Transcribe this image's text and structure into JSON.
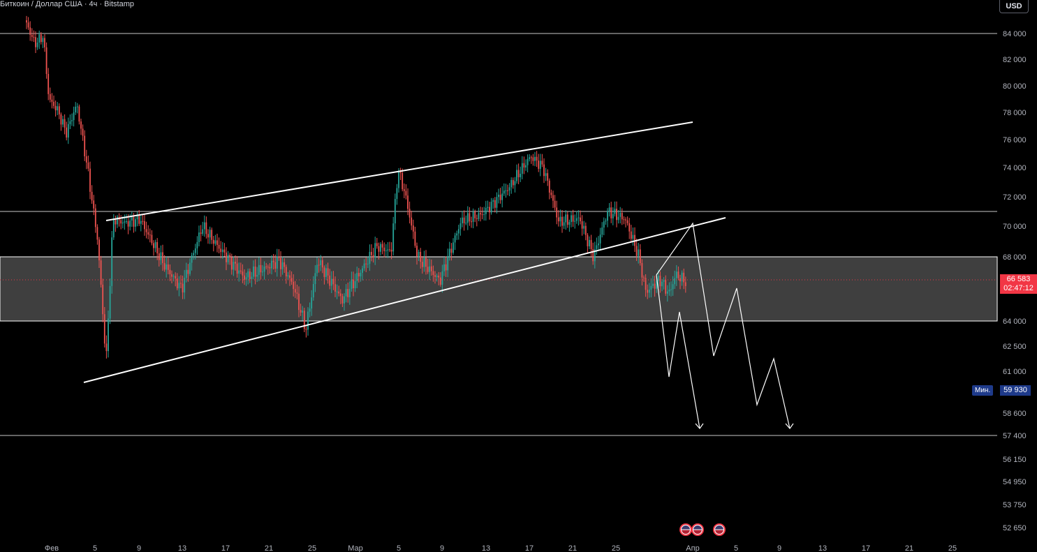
{
  "symbol": {
    "title": "Биткоин / Доллар США · 4ч · Bitstamp"
  },
  "currency": {
    "label": "USD"
  },
  "price_axis": {
    "ticks": [
      "84 000",
      "82 000",
      "80 000",
      "78 000",
      "76 000",
      "74 000",
      "72 000",
      "70 000",
      "68 000",
      "64 000",
      "62 500",
      "61 000",
      "58 600",
      "57 400",
      "56 150",
      "54 950",
      "53 750",
      "52 650"
    ]
  },
  "time_axis": {
    "ticks": [
      "Фев",
      "5",
      "9",
      "13",
      "17",
      "21",
      "25",
      "Мар",
      "5",
      "9",
      "13",
      "17",
      "21",
      "25",
      "Апр",
      "5",
      "9",
      "13",
      "17",
      "21",
      "25"
    ]
  },
  "last_price": {
    "value": "66 583",
    "countdown": "02:47:12"
  },
  "min_marker": {
    "label": "Мин.",
    "value": "59 930"
  },
  "colors": {
    "up": "#26a69a",
    "down": "#ef5350",
    "drawing": "#ffffff",
    "zone": "#4a4a4a",
    "badge": "#f23645",
    "min_badge": "#1e3a8a"
  },
  "horizontal_levels": [
    84000,
    71000,
    57400
  ],
  "support_zone": {
    "top": 68000,
    "bottom": 64000
  },
  "events": [
    {
      "icon": "us-flag-icon",
      "count": 2
    },
    {
      "icon": "us-flag-icon",
      "count": 1
    }
  ]
}
